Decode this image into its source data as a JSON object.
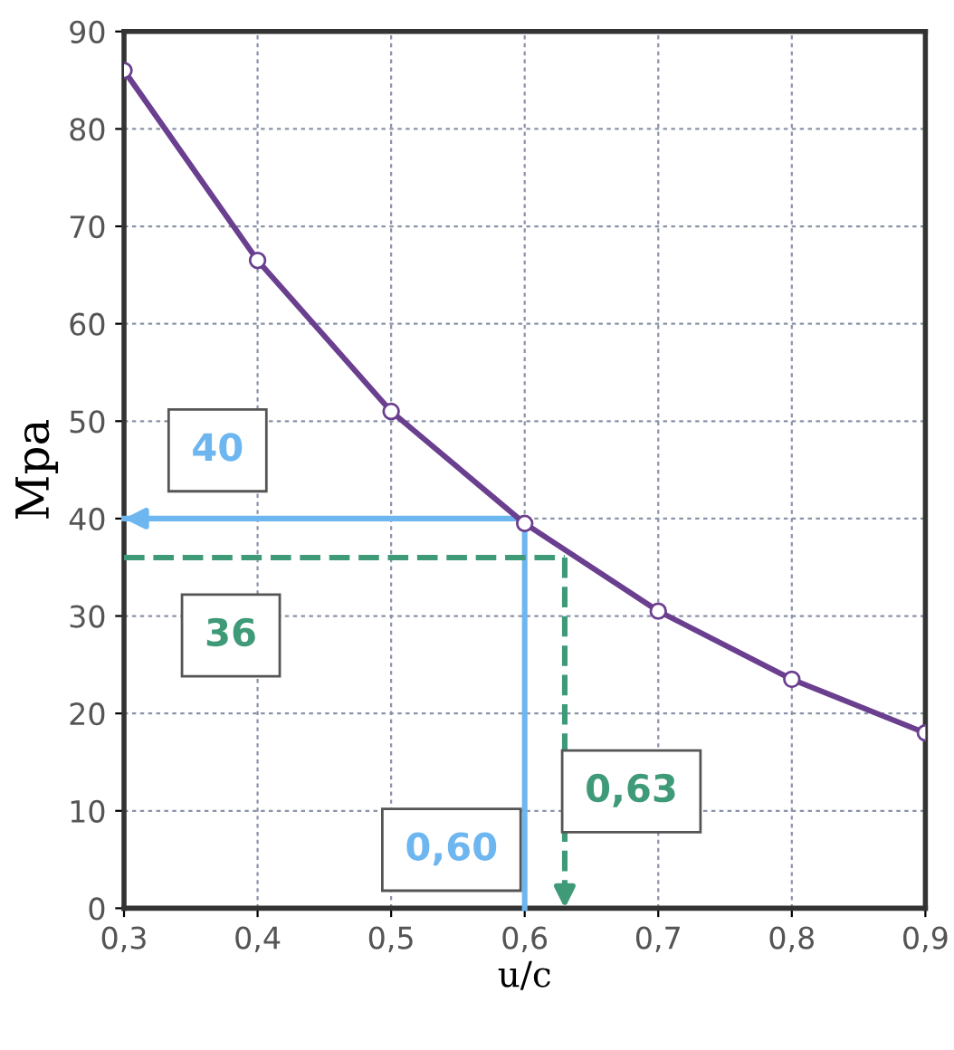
{
  "chart_data": {
    "type": "line",
    "xlabel": "u/c",
    "ylabel": "Mpa",
    "x": [
      0.3,
      0.4,
      0.5,
      0.6,
      0.7,
      0.8,
      0.9
    ],
    "series": [
      {
        "color": "#6b3f8f",
        "values": [
          86,
          66.5,
          51,
          39.5,
          30.5,
          23.5,
          18
        ]
      }
    ],
    "marker": "circle",
    "line_style": "solid",
    "xlim": [
      0.3,
      0.9
    ],
    "ylim": [
      0,
      90
    ],
    "xticks": [
      {
        "value": 0.3,
        "label": "0,3"
      },
      {
        "value": 0.4,
        "label": "0,4"
      },
      {
        "value": 0.5,
        "label": "0,5"
      },
      {
        "value": 0.6,
        "label": "0,6"
      },
      {
        "value": 0.7,
        "label": "0,7"
      },
      {
        "value": 0.8,
        "label": "0,8"
      },
      {
        "value": 0.9,
        "label": "0,9"
      }
    ],
    "yticks": [
      0,
      10,
      20,
      30,
      40,
      50,
      60,
      70,
      80,
      90
    ],
    "grid": true,
    "ref_lines": [
      {
        "axis": "x",
        "value": 0.6,
        "label": "0,60",
        "color": "#6db6f0",
        "line_style": "solid"
      },
      {
        "axis": "y",
        "value": 40,
        "label": "40",
        "color": "#6db6f0",
        "line_style": "solid"
      },
      {
        "axis": "y",
        "value": 36,
        "label": "36",
        "color": "#3f9a78",
        "line_style": "dashed"
      },
      {
        "axis": "x",
        "value": 0.63,
        "label": "0,63",
        "color": "#3f9a78",
        "line_style": "dashed"
      }
    ]
  }
}
